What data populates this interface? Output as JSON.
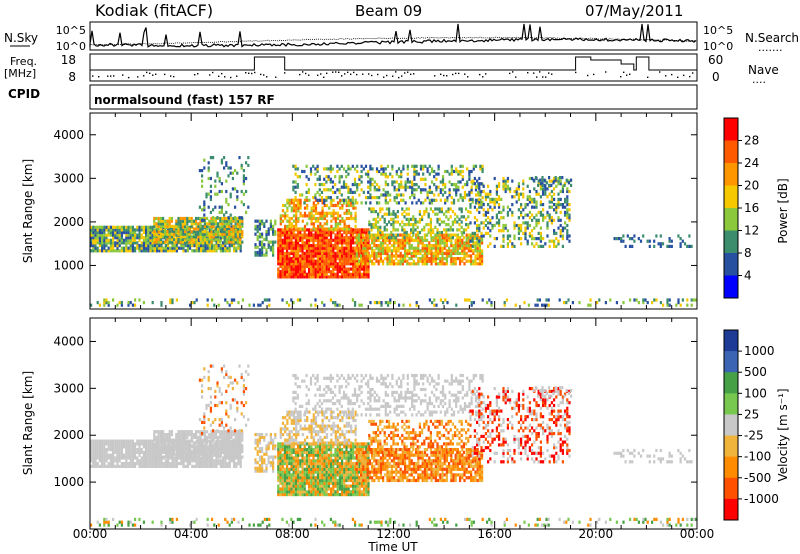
{
  "header": {
    "station": "Kodiak (fitACF)",
    "beam": "Beam 09",
    "date": "07/May/2011"
  },
  "summary": {
    "nsky_label": "N.Sky",
    "nsearch_label": "N.Search",
    "nsearch_dots": "·······",
    "nsky_ticks": [
      "10^5",
      "10^0"
    ],
    "freq_label": "Freq.",
    "freq_unit": "[MHz]",
    "freq_ticks": [
      "18",
      "8"
    ],
    "nave_label": "Nave",
    "nave_dots": "····",
    "nave_ticks": [
      "60",
      "0"
    ],
    "cpid_label": "CPID",
    "cpid_text": "normalsound (fast) 157 RF"
  },
  "chart_data": [
    {
      "type": "heatmap",
      "panel": "power",
      "ylabel": "Slant Range [km]",
      "ylim": [
        0,
        4500
      ],
      "yticks": [
        1000,
        2000,
        3000,
        4000
      ],
      "x_ticks": [
        "00:00",
        "04:00",
        "08:00",
        "12:00",
        "16:00",
        "20:00",
        "00:00"
      ],
      "colorbar": {
        "label": "Power [dB]",
        "ticks": [
          "28",
          "24",
          "20",
          "16",
          "12",
          "8",
          "4"
        ],
        "colors": [
          "#ff0000",
          "#ff5a00",
          "#ff9600",
          "#f5c800",
          "#8cc83c",
          "#3c8c6e",
          "#2850a0",
          "#0000ff"
        ]
      }
    },
    {
      "type": "heatmap",
      "panel": "velocity",
      "ylabel": "Slant Range [km]",
      "ylim": [
        0,
        4500
      ],
      "yticks": [
        1000,
        2000,
        3000,
        4000
      ],
      "x_ticks": [
        "00:00",
        "04:00",
        "08:00",
        "12:00",
        "16:00",
        "20:00",
        "00:00"
      ],
      "xlabel": "Time UT",
      "colorbar": {
        "label": "Velocity [m s⁻¹]",
        "ticks": [
          "1000",
          "500",
          "100",
          "25",
          "-25",
          "-100",
          "-500",
          "-1000"
        ],
        "colors": [
          "#1e3c96",
          "#3c64b4",
          "#46a046",
          "#78c850",
          "#c8c8c8",
          "#f0b43c",
          "#ff8c00",
          "#ff5000",
          "#ff0000"
        ]
      }
    }
  ]
}
